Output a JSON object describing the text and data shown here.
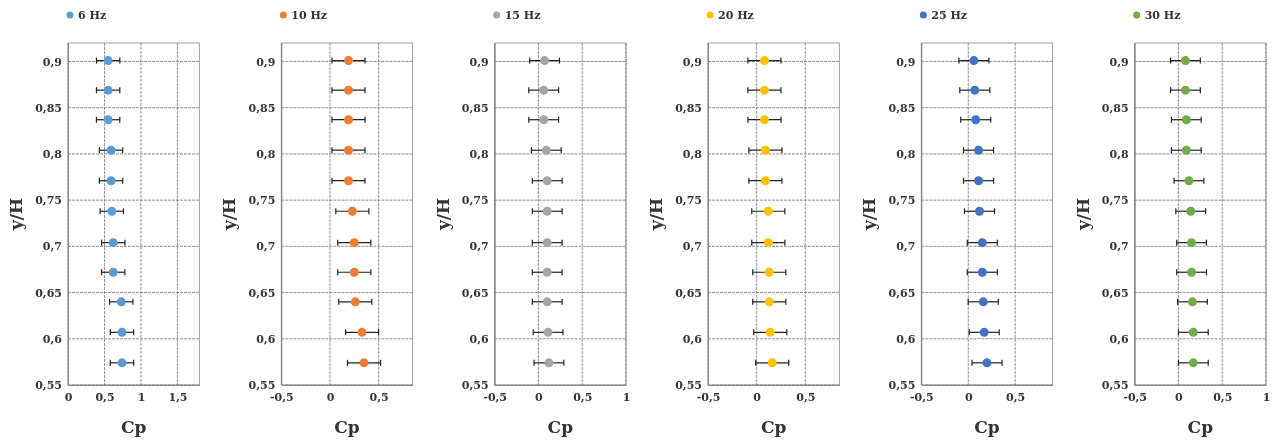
{
  "chart_data": [
    {
      "type": "scatter",
      "xlabel": "Cp",
      "ylabel": "y/H",
      "legend": "top",
      "marker": "circle",
      "grid": true,
      "xlim": [
        0,
        1.8
      ],
      "xticks": [
        {
          "value": 0,
          "label": "0"
        },
        {
          "value": 0.5,
          "label": "0,5"
        },
        {
          "value": 1,
          "label": "1"
        },
        {
          "value": 1.5,
          "label": "1,5"
        }
      ],
      "ylim": [
        0.55,
        0.92
      ],
      "yticks": [
        {
          "value": 0.55,
          "label": "0,55"
        },
        {
          "value": 0.6,
          "label": "0,6"
        },
        {
          "value": 0.65,
          "label": "0,65"
        },
        {
          "value": 0.7,
          "label": "0,7"
        },
        {
          "value": 0.75,
          "label": "0,75"
        },
        {
          "value": 0.8,
          "label": "0,8"
        },
        {
          "value": 0.85,
          "label": "0,85"
        },
        {
          "value": 0.9,
          "label": "0,9"
        }
      ],
      "series": [
        {
          "name": "6 Hz",
          "color": "#5b9bd5",
          "x": [
            0.55,
            0.55,
            0.55,
            0.59,
            0.59,
            0.6,
            0.62,
            0.62,
            0.73,
            0.74,
            0.74
          ],
          "values": [
            0.901,
            0.869,
            0.837,
            0.804,
            0.771,
            0.738,
            0.704,
            0.672,
            0.64,
            0.607,
            0.574
          ],
          "xerrors": [
            0.16,
            0.16,
            0.16,
            0.16,
            0.16,
            0.16,
            0.16,
            0.16,
            0.16,
            0.16,
            0.16
          ]
        }
      ]
    },
    {
      "type": "scatter",
      "xlabel": "Cp",
      "ylabel": "y/H",
      "legend": "top",
      "marker": "circle",
      "grid": true,
      "xlim": [
        -0.5,
        0.85
      ],
      "xticks": [
        {
          "value": -0.5,
          "label": "-0,5"
        },
        {
          "value": 0,
          "label": "0"
        },
        {
          "value": 0.5,
          "label": "0,5"
        }
      ],
      "ylim": [
        0.55,
        0.92
      ],
      "yticks": [
        {
          "value": 0.55,
          "label": "0,55"
        },
        {
          "value": 0.6,
          "label": "0,6"
        },
        {
          "value": 0.65,
          "label": "0,65"
        },
        {
          "value": 0.7,
          "label": "0,7"
        },
        {
          "value": 0.75,
          "label": "0,75"
        },
        {
          "value": 0.8,
          "label": "0,8"
        },
        {
          "value": 0.85,
          "label": "0,85"
        },
        {
          "value": 0.9,
          "label": "0,9"
        }
      ],
      "series": [
        {
          "name": "10 Hz",
          "color": "#ed7d31",
          "x": [
            0.19,
            0.19,
            0.19,
            0.19,
            0.19,
            0.23,
            0.25,
            0.25,
            0.26,
            0.33,
            0.35
          ],
          "values": [
            0.901,
            0.869,
            0.837,
            0.804,
            0.771,
            0.738,
            0.704,
            0.672,
            0.64,
            0.607,
            0.574
          ],
          "xerrors": [
            0.17,
            0.17,
            0.17,
            0.17,
            0.17,
            0.17,
            0.17,
            0.17,
            0.17,
            0.17,
            0.17
          ]
        }
      ]
    },
    {
      "type": "scatter",
      "xlabel": "Cp",
      "ylabel": "y/H",
      "legend": "top",
      "marker": "circle",
      "grid": true,
      "xlim": [
        -0.5,
        1
      ],
      "xticks": [
        {
          "value": -0.5,
          "label": "-0,5"
        },
        {
          "value": 0,
          "label": "0"
        },
        {
          "value": 0.5,
          "label": "0,5"
        },
        {
          "value": 1,
          "label": "1"
        }
      ],
      "ylim": [
        0.55,
        0.92
      ],
      "yticks": [
        {
          "value": 0.55,
          "label": "0,55"
        },
        {
          "value": 0.6,
          "label": "0,6"
        },
        {
          "value": 0.65,
          "label": "0,65"
        },
        {
          "value": 0.7,
          "label": "0,7"
        },
        {
          "value": 0.75,
          "label": "0,75"
        },
        {
          "value": 0.8,
          "label": "0,8"
        },
        {
          "value": 0.85,
          "label": "0,85"
        },
        {
          "value": 0.9,
          "label": "0,9"
        }
      ],
      "series": [
        {
          "name": "15 Hz",
          "color": "#a5a5a5",
          "x": [
            0.07,
            0.06,
            0.06,
            0.09,
            0.1,
            0.1,
            0.1,
            0.1,
            0.1,
            0.11,
            0.12
          ],
          "values": [
            0.901,
            0.869,
            0.837,
            0.804,
            0.771,
            0.738,
            0.704,
            0.672,
            0.64,
            0.607,
            0.574
          ],
          "xerrors": [
            0.17,
            0.17,
            0.17,
            0.17,
            0.17,
            0.17,
            0.17,
            0.17,
            0.17,
            0.17,
            0.17
          ]
        }
      ]
    },
    {
      "type": "scatter",
      "xlabel": "Cp",
      "ylabel": "y/H",
      "legend": "top",
      "marker": "circle",
      "grid": true,
      "xlim": [
        -0.5,
        0.85
      ],
      "xticks": [
        {
          "value": -0.5,
          "label": "-0,5"
        },
        {
          "value": 0,
          "label": "0"
        },
        {
          "value": 0.5,
          "label": "0,5"
        }
      ],
      "ylim": [
        0.55,
        0.92
      ],
      "yticks": [
        {
          "value": 0.55,
          "label": "0,55"
        },
        {
          "value": 0.6,
          "label": "0,6"
        },
        {
          "value": 0.65,
          "label": "0,65"
        },
        {
          "value": 0.7,
          "label": "0,7"
        },
        {
          "value": 0.75,
          "label": "0,75"
        },
        {
          "value": 0.8,
          "label": "0,8"
        },
        {
          "value": 0.85,
          "label": "0,85"
        },
        {
          "value": 0.9,
          "label": "0,9"
        }
      ],
      "series": [
        {
          "name": "20 Hz",
          "color": "#ffc000",
          "x": [
            0.08,
            0.08,
            0.08,
            0.09,
            0.09,
            0.12,
            0.12,
            0.13,
            0.13,
            0.14,
            0.16
          ],
          "values": [
            0.901,
            0.869,
            0.837,
            0.804,
            0.771,
            0.738,
            0.704,
            0.672,
            0.64,
            0.607,
            0.574
          ],
          "xerrors": [
            0.17,
            0.17,
            0.17,
            0.17,
            0.17,
            0.17,
            0.17,
            0.17,
            0.17,
            0.17,
            0.17
          ]
        }
      ]
    },
    {
      "type": "scatter",
      "xlabel": "Cp",
      "ylabel": "y/H",
      "legend": "top",
      "marker": "circle",
      "grid": true,
      "xlim": [
        -0.5,
        0.9
      ],
      "xticks": [
        {
          "value": -0.5,
          "label": "-0,5"
        },
        {
          "value": 0,
          "label": "0"
        },
        {
          "value": 0.5,
          "label": "0,5"
        }
      ],
      "ylim": [
        0.55,
        0.92
      ],
      "yticks": [
        {
          "value": 0.55,
          "label": "0,55"
        },
        {
          "value": 0.6,
          "label": "0,6"
        },
        {
          "value": 0.65,
          "label": "0,65"
        },
        {
          "value": 0.7,
          "label": "0,7"
        },
        {
          "value": 0.75,
          "label": "0,75"
        },
        {
          "value": 0.8,
          "label": "0,8"
        },
        {
          "value": 0.85,
          "label": "0,85"
        },
        {
          "value": 0.9,
          "label": "0,9"
        }
      ],
      "series": [
        {
          "name": "25 Hz",
          "color": "#4472c4",
          "x": [
            0.06,
            0.07,
            0.08,
            0.11,
            0.11,
            0.12,
            0.15,
            0.15,
            0.16,
            0.17,
            0.2
          ],
          "values": [
            0.901,
            0.869,
            0.837,
            0.804,
            0.771,
            0.738,
            0.704,
            0.672,
            0.64,
            0.607,
            0.574
          ],
          "xerrors": [
            0.16,
            0.16,
            0.16,
            0.16,
            0.16,
            0.16,
            0.16,
            0.16,
            0.16,
            0.16,
            0.16
          ]
        }
      ]
    },
    {
      "type": "scatter",
      "xlabel": "Cp",
      "ylabel": "y/H",
      "legend": "top",
      "marker": "circle",
      "grid": true,
      "xlim": [
        -0.5,
        1
      ],
      "xticks": [
        {
          "value": -0.5,
          "label": "-0,5"
        },
        {
          "value": 0,
          "label": "0"
        },
        {
          "value": 0.5,
          "label": "0,5"
        },
        {
          "value": 1,
          "label": "1"
        }
      ],
      "ylim": [
        0.55,
        0.92
      ],
      "yticks": [
        {
          "value": 0.55,
          "label": "0,55"
        },
        {
          "value": 0.6,
          "label": "0,6"
        },
        {
          "value": 0.65,
          "label": "0,65"
        },
        {
          "value": 0.7,
          "label": "0,7"
        },
        {
          "value": 0.75,
          "label": "0,75"
        },
        {
          "value": 0.8,
          "label": "0,8"
        },
        {
          "value": 0.85,
          "label": "0,85"
        },
        {
          "value": 0.9,
          "label": "0,9"
        }
      ],
      "series": [
        {
          "name": "30 Hz",
          "color": "#70ad47",
          "x": [
            0.08,
            0.08,
            0.09,
            0.09,
            0.12,
            0.14,
            0.15,
            0.15,
            0.16,
            0.17,
            0.17
          ],
          "values": [
            0.901,
            0.869,
            0.837,
            0.804,
            0.771,
            0.738,
            0.704,
            0.672,
            0.64,
            0.607,
            0.574
          ],
          "xerrors": [
            0.17,
            0.17,
            0.17,
            0.17,
            0.17,
            0.17,
            0.17,
            0.17,
            0.17,
            0.17,
            0.17
          ]
        }
      ]
    }
  ]
}
